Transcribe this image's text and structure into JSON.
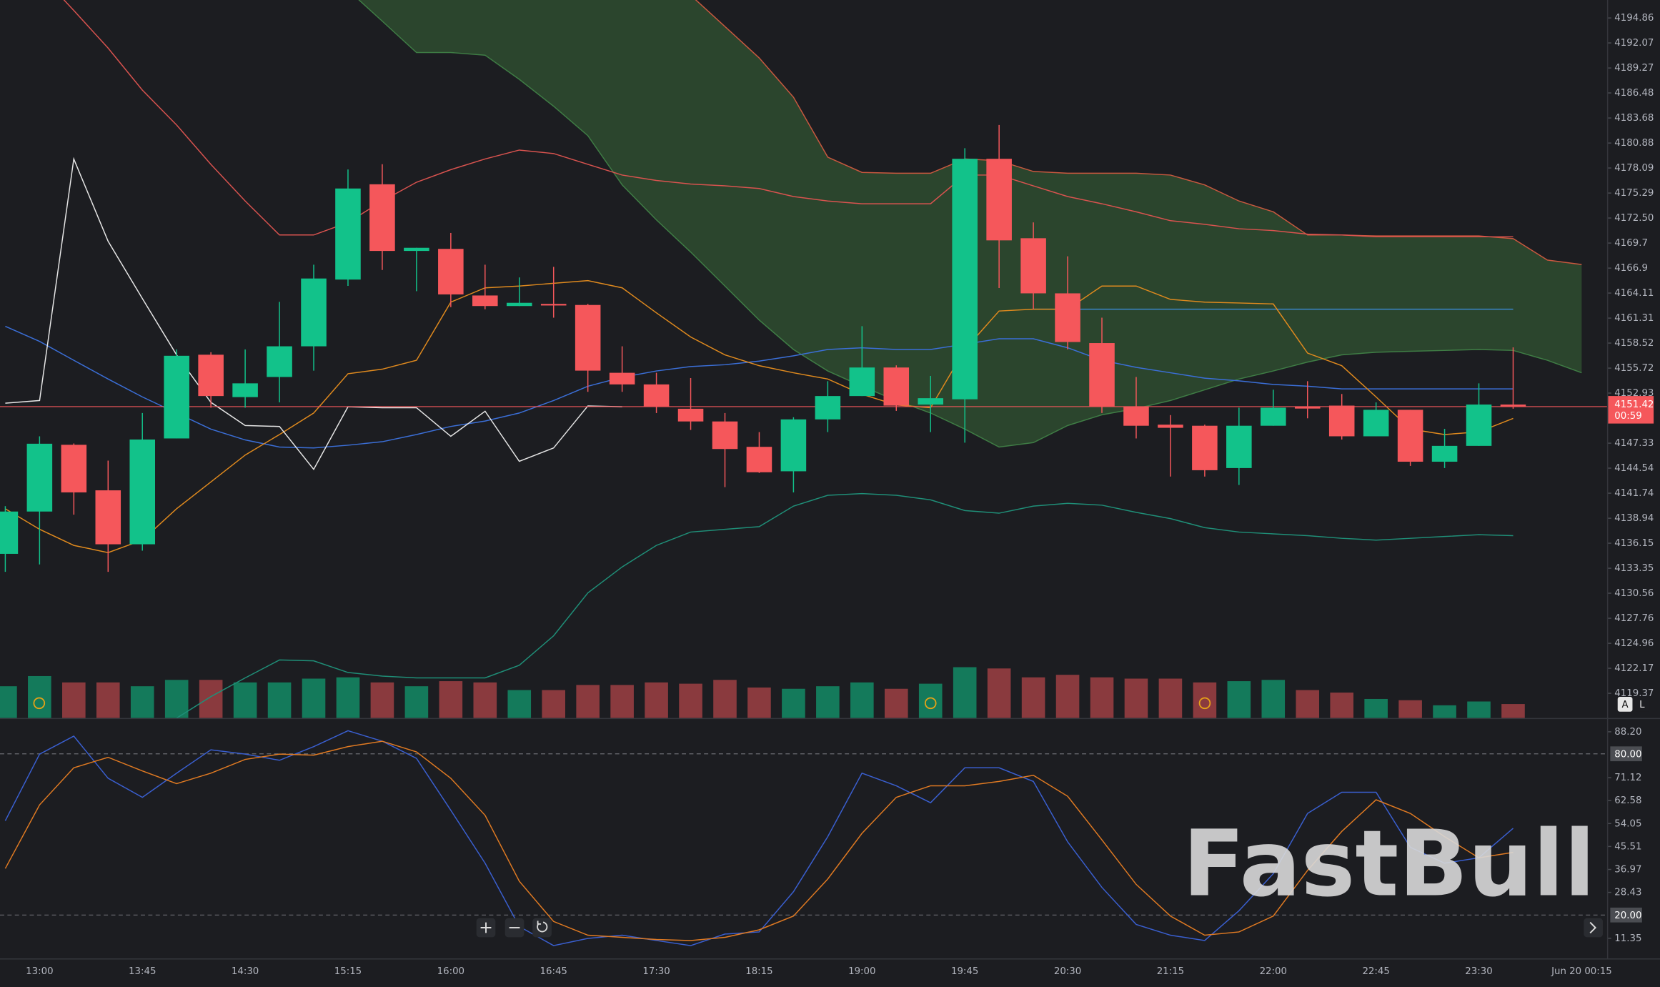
{
  "chart_data": [
    {
      "type": "candlestick",
      "categories": [
        null,
        "13:00",
        null,
        null,
        "13:45",
        null,
        null,
        "14:30",
        null,
        null,
        "15:15",
        null,
        null,
        "16:00",
        null,
        null,
        "16:45",
        null,
        null,
        "17:30",
        null,
        null,
        "18:15",
        null,
        null,
        "19:00",
        null,
        null,
        "19:45",
        null,
        null,
        "20:30",
        null,
        null,
        "21:15",
        null,
        null,
        "22:00",
        null,
        null,
        "22:45",
        null,
        null,
        "23:30",
        null,
        null,
        "Jun 20 00:15"
      ],
      "open": [
        4134.96,
        4139.69,
        4147.15,
        4142.06,
        4136.03,
        4147.86,
        4157.22,
        4152.48,
        4154.73,
        4158.16,
        4165.62,
        4176.27,
        4168.82,
        4169.05,
        4163.84,
        4162.66,
        4162.9,
        4162.78,
        4155.2,
        4153.9,
        4151.18,
        4149.76,
        4146.92,
        4144.19,
        4149.99,
        4152.6,
        4155.79,
        4151.65,
        4152.24,
        4179.12,
        4170.24,
        4164.08,
        4158.52,
        4151.42,
        4149.4,
        4149.28,
        4144.55,
        4149.28,
        4151.42,
        4151.53,
        4148.1,
        4151.06,
        4145.26,
        4147.03,
        4151.65,
        null,
        null
      ],
      "high": [
        4140.29,
        4148.1,
        4147.3,
        4145.38,
        4150.7,
        4157.81,
        4157.5,
        4157.81,
        4163.13,
        4167.28,
        4177.93,
        4178.52,
        4169.17,
        4170.83,
        4167.28,
        4165.86,
        4167.04,
        4162.9,
        4158.16,
        4155.2,
        4154.61,
        4150.7,
        4148.57,
        4150.23,
        4154.26,
        4160.41,
        4156.03,
        4154.85,
        4180.3,
        4182.9,
        4172.01,
        4168.22,
        4161.36,
        4154.73,
        4150.47,
        4149.4,
        4151.3,
        4153.31,
        4154.26,
        4152.83,
        4151.89,
        4151.06,
        4148.93,
        4154.02,
        4158.04,
        null,
        null
      ],
      "low": [
        4132.95,
        4133.78,
        4139.34,
        4132.95,
        4135.31,
        4147.86,
        4151.3,
        4151.3,
        4151.89,
        4155.44,
        4164.91,
        4166.69,
        4164.32,
        4162.54,
        4162.3,
        4162.66,
        4161.36,
        4153.07,
        4153.07,
        4150.7,
        4148.81,
        4142.42,
        4144.0,
        4141.83,
        4148.57,
        4152.6,
        4150.94,
        4148.57,
        4147.39,
        4164.67,
        4162.3,
        4157.81,
        4150.7,
        4147.86,
        4143.6,
        4143.6,
        4142.66,
        4149.28,
        4150.11,
        4147.74,
        4148.1,
        4144.79,
        4144.55,
        4147.03,
        4151.18,
        null,
        null
      ],
      "close": [
        4139.69,
        4147.27,
        4141.83,
        4136.03,
        4147.74,
        4157.1,
        4152.6,
        4154.02,
        4158.16,
        4165.74,
        4175.8,
        4168.82,
        4169.17,
        4163.96,
        4162.66,
        4163.02,
        4162.9,
        4155.44,
        4153.9,
        4151.42,
        4149.76,
        4146.68,
        4144.08,
        4149.99,
        4152.6,
        4155.79,
        4151.53,
        4152.36,
        4179.12,
        4170.0,
        4164.08,
        4158.64,
        4151.42,
        4149.28,
        4149.05,
        4144.31,
        4149.28,
        4151.3,
        4151.2,
        4148.1,
        4151.06,
        4145.26,
        4147.03,
        4151.65,
        4151.42,
        null,
        null
      ],
      "volume": [
        25,
        33,
        28,
        28,
        25,
        30,
        30,
        28,
        28,
        31,
        32,
        28,
        25,
        29,
        28,
        22,
        22,
        26,
        26,
        28,
        27,
        30,
        24,
        23,
        25,
        28,
        23,
        27,
        40,
        39,
        32,
        34,
        32,
        31,
        31,
        28,
        29,
        30,
        22,
        20,
        15,
        14,
        10,
        13,
        11,
        null,
        null
      ],
      "volume_ylim": [
        0,
        100
      ],
      "colors": {
        "up": "#12c28a",
        "down": "#f5575b",
        "volume_up": "#147a5b",
        "volume_down": "#8a3a3e"
      },
      "cloud": {
        "color": "#2e4a2f",
        "span_a": [
          null,
          null,
          null,
          null,
          null,
          null,
          null,
          null,
          null,
          null,
          4198.0,
          4194.5,
          4191.0,
          4191.0,
          4190.7,
          4188.0,
          4185.0,
          4181.7,
          4176.2,
          4172.3,
          4168.7,
          4164.9,
          4161.1,
          4157.8,
          4155.4,
          4153.7,
          4152.1,
          4150.7,
          4148.9,
          4146.9,
          4147.4,
          4149.3,
          4150.5,
          4151.2,
          4152.1,
          4153.3,
          4154.5,
          4155.4,
          4156.4,
          4157.2,
          4157.5,
          4157.6,
          4157.7,
          4157.8,
          4157.7,
          4156.6,
          4155.2
        ],
        "span_b": [
          null,
          null,
          null,
          null,
          null,
          null,
          null,
          null,
          null,
          null,
          4217,
          4215,
          4213,
          4211,
          4209,
          4207,
          4205,
          4203,
          4201,
          4199.2,
          4197.4,
          4193.9,
          4190.4,
          4186.0,
          4179.3,
          4177.6,
          4177.5,
          4177.5,
          4179.1,
          4178.9,
          4177.7,
          4177.5,
          4177.5,
          4177.5,
          4177.3,
          4176.2,
          4174.4,
          4173.2,
          4170.6,
          4170.6,
          4170.5,
          4170.5,
          4170.5,
          4170.5,
          4170.2,
          4167.8,
          4167.3
        ],
        "edge_a": "#3f7d45",
        "edge_b": "#c9583f"
      },
      "lines": [
        {
          "color": "#d9534f",
          "values": [
            null,
            4199.8,
            4195.7,
            4191.5,
            4186.8,
            4182.9,
            4178.5,
            4174.4,
            4170.6,
            4170.6,
            4172.0,
            4174.4,
            4176.5,
            4177.9,
            4179.1,
            4180.1,
            4179.7,
            4178.5,
            4177.3,
            4176.7,
            4176.3,
            4176.1,
            4175.8,
            4174.9,
            4174.4,
            4174.1,
            4174.1,
            4174.1,
            4177.3,
            4177.3,
            4176.1,
            4174.9,
            4174.1,
            4173.2,
            4172.2,
            4171.8,
            4171.3,
            4171.1,
            4170.7,
            4170.6,
            4170.4,
            4170.4,
            4170.4,
            4170.4,
            4170.4,
            null,
            null
          ]
        },
        {
          "color": "#1f8f78",
          "values": [
            null,
            null,
            null,
            null,
            null,
            4116.6,
            4119.0,
            4121.1,
            4123.1,
            4123.0,
            4121.7,
            4121.3,
            4121.1,
            4121.1,
            4121.1,
            4122.5,
            4125.8,
            4130.6,
            4133.5,
            4135.9,
            4137.4,
            4137.7,
            4138.0,
            4140.3,
            4141.5,
            4141.7,
            4141.5,
            4141.0,
            4139.8,
            4139.5,
            4140.3,
            4140.6,
            4140.4,
            4139.6,
            4138.9,
            4137.9,
            4137.4,
            4137.2,
            4137.0,
            4136.7,
            4136.5,
            4136.7,
            4136.9,
            4137.1,
            4137.0,
            null,
            null
          ]
        },
        {
          "color": "#3b6fd8",
          "values": [
            4160.4,
            4158.7,
            4156.6,
            4154.5,
            4152.5,
            4150.7,
            4148.9,
            4147.7,
            4146.9,
            4146.8,
            4147.1,
            4147.5,
            4148.3,
            4149.2,
            4149.8,
            4150.7,
            4152.1,
            4153.7,
            4154.7,
            4155.4,
            4155.9,
            4156.1,
            4156.5,
            4157.1,
            4157.8,
            4158.0,
            4157.8,
            4157.8,
            4158.4,
            4159.0,
            4159.0,
            4158.0,
            4156.6,
            4155.8,
            4155.2,
            4154.6,
            4154.3,
            4153.9,
            4153.7,
            4153.4,
            4153.4,
            4153.4,
            4153.4,
            4153.4,
            4153.4,
            null,
            null
          ]
        },
        {
          "color": "#3a86c8",
          "values": [
            null,
            null,
            null,
            null,
            null,
            null,
            null,
            null,
            null,
            null,
            null,
            null,
            null,
            null,
            null,
            null,
            null,
            null,
            null,
            null,
            null,
            null,
            null,
            null,
            null,
            null,
            null,
            null,
            null,
            null,
            4162.3,
            4162.3,
            4162.3,
            4162.3,
            4162.3,
            4162.3,
            4162.3,
            4162.3,
            4162.3,
            4162.3,
            4162.3,
            4162.3,
            4162.3,
            4162.3,
            4162.3,
            null,
            null
          ]
        },
        {
          "color": "#e08a1e",
          "values": [
            4140.0,
            4137.7,
            4135.9,
            4135.1,
            4136.5,
            4140.0,
            4143.0,
            4146.0,
            4148.3,
            4150.7,
            4155.1,
            4155.6,
            4156.6,
            4163.1,
            4164.7,
            4164.9,
            4165.2,
            4165.5,
            4164.7,
            4161.9,
            4159.2,
            4157.2,
            4156.0,
            4155.2,
            4154.5,
            4152.8,
            4151.6,
            4151.3,
            4157.8,
            4162.1,
            4162.3,
            4162.3,
            4164.9,
            4164.9,
            4163.4,
            4163.1,
            4163.0,
            4162.9,
            4157.4,
            4156.0,
            4152.5,
            4148.9,
            4148.3,
            4148.6,
            4150.1,
            null,
            null
          ]
        },
        {
          "color": "#e6e6e6",
          "values": [
            4151.8,
            4152.1,
            4179.1,
            4169.9,
            4163.5,
            4157.2,
            4151.9,
            4149.3,
            4149.2,
            4144.4,
            4151.4,
            4151.3,
            4151.3,
            4148.1,
            4150.9,
            4145.3,
            4146.8,
            4151.5,
            4151.4,
            null,
            null,
            null,
            null,
            null,
            null,
            null,
            null,
            null,
            null,
            null,
            null,
            null,
            null,
            null,
            null,
            null,
            null,
            null,
            null,
            null,
            null,
            null,
            null,
            null,
            null,
            null,
            null
          ]
        }
      ],
      "ylim": [
        4116.61,
        4196.87
      ],
      "yticks": [
        4194.86,
        4192.07,
        4189.27,
        4186.48,
        4183.68,
        4180.88,
        4178.09,
        4175.29,
        {
          "value": 4172.5,
          "label": "4172.50"
        },
        4169.7,
        4166.9,
        4164.11,
        4161.31,
        4158.52,
        4155.72,
        4152.93,
        4147.33,
        4144.54,
        4141.74,
        4138.94,
        4136.15,
        4133.35,
        4130.56,
        4127.76,
        4124.96,
        4122.17,
        4119.37
      ],
      "last_price": 4151.42,
      "last_price_color": "#f5575b",
      "countdown": "00:59"
    },
    {
      "type": "line",
      "series": [
        {
          "color": "#3a5fd0",
          "values": [
            55.1,
            79.9,
            86.6,
            70.9,
            63.8,
            72.8,
            81.5,
            79.9,
            77.6,
            82.7,
            88.6,
            84.7,
            78.3,
            59.0,
            39.3,
            15.7,
            8.6,
            11.3,
            12.5,
            10.5,
            8.6,
            12.9,
            13.7,
            28.7,
            49.2,
            72.8,
            68.1,
            61.8,
            74.8,
            74.8,
            69.7,
            47.2,
            30.3,
            16.5,
            12.5,
            10.5,
            21.6,
            35.4,
            57.8,
            65.7,
            65.7,
            45.2,
            39.3,
            41.3,
            52.3,
            null,
            null
          ]
        },
        {
          "color": "#e07a22",
          "values": [
            37.3,
            61.0,
            74.8,
            78.7,
            73.6,
            68.9,
            72.8,
            77.9,
            79.9,
            79.5,
            82.7,
            84.7,
            80.7,
            70.9,
            57.1,
            32.6,
            17.6,
            12.5,
            11.7,
            10.9,
            10.5,
            11.7,
            14.5,
            19.6,
            33.4,
            50.4,
            63.8,
            68.1,
            68.1,
            69.7,
            72.0,
            64.2,
            48.0,
            31.4,
            19.6,
            12.5,
            13.7,
            19.6,
            36.6,
            51.1,
            62.9,
            57.8,
            49.2,
            41.3,
            43.3,
            null,
            null
          ]
        }
      ],
      "ylim": [
        3.85,
        92.54
      ],
      "yticks": [
        {
          "value": 88.2,
          "label": "88.20"
        },
        71.12,
        62.58,
        54.05,
        45.51,
        36.97,
        28.43,
        11.35
      ],
      "reference_lines": [
        {
          "value": 80,
          "label": "80.00"
        },
        {
          "value": 20,
          "label": "20.00"
        }
      ]
    }
  ],
  "ui": {
    "watermark": "FastBull",
    "buttons": [
      "A",
      "L"
    ]
  }
}
